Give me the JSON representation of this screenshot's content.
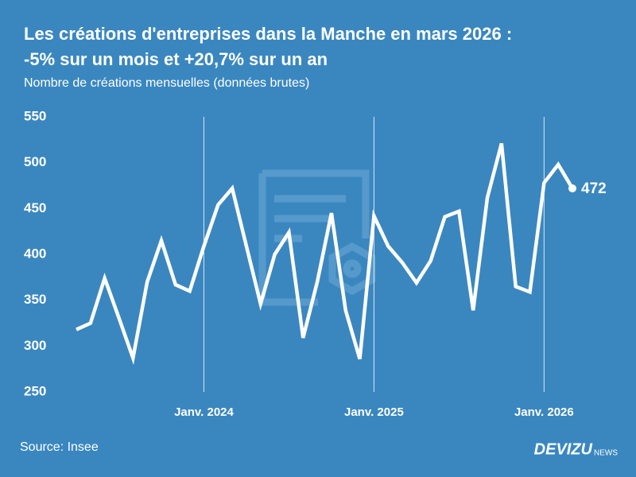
{
  "chart_data": {
    "type": "line",
    "title": "Les créations d'entreprises dans la Manche en mars 2026 :",
    "title_line2": "-5% sur un mois et +20,7% sur un an",
    "subtitle": "Nombre de créations mensuelles (données brutes)",
    "source": "Source: Insee",
    "brand": "DEVIZU",
    "brand_suffix": "NEWS",
    "categories": [
      null,
      null,
      null,
      null,
      null,
      null,
      null,
      null,
      null,
      "Janv. 2024",
      null,
      null,
      null,
      null,
      null,
      null,
      null,
      null,
      null,
      null,
      null,
      "Janv. 2025",
      null,
      null,
      null,
      null,
      null,
      null,
      null,
      null,
      null,
      null,
      null,
      "Janv. 2026",
      null,
      null
    ],
    "values": [
      318,
      325,
      374,
      331,
      287,
      370,
      415,
      367,
      360,
      409,
      454,
      472,
      409,
      346,
      400,
      424,
      309,
      370,
      445,
      339,
      286,
      442,
      409,
      391,
      369,
      393,
      441,
      447,
      339,
      462,
      521,
      365,
      359,
      478,
      498,
      472
    ],
    "color": "#ffffff",
    "ylim": [
      250,
      550
    ],
    "yticks": [
      250,
      300,
      350,
      400,
      450,
      500,
      550
    ]
  }
}
